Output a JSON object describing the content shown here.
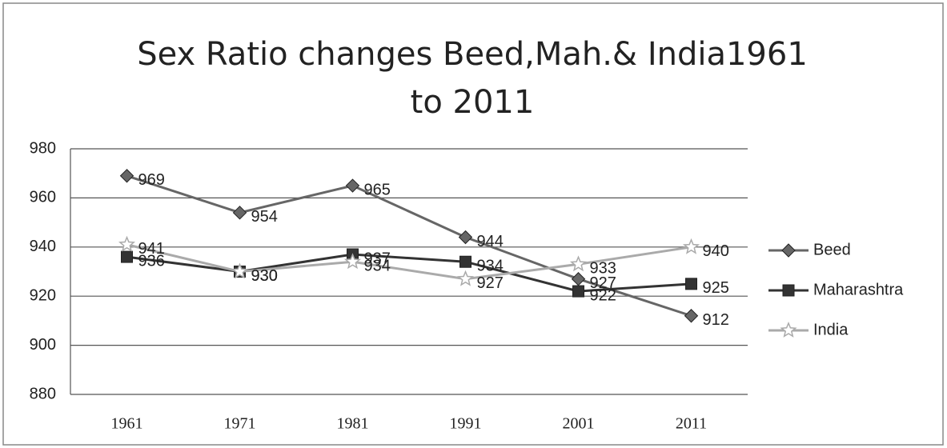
{
  "chart_data": {
    "type": "line",
    "title": "Sex Ratio changes Beed,Mah.& India1961 to 2011",
    "categories": [
      "1961",
      "1971",
      "1981",
      "1991",
      "2001",
      "2011"
    ],
    "series": [
      {
        "name": "Beed",
        "color": "#666666",
        "marker": "diamond",
        "values": [
          969,
          954,
          965,
          944,
          927,
          912
        ]
      },
      {
        "name": "Maharashtra",
        "color": "#333333",
        "marker": "square",
        "values": [
          936,
          930,
          937,
          934,
          922,
          925
        ]
      },
      {
        "name": "India",
        "color": "#aaaaaa",
        "marker": "star",
        "values": [
          941,
          930,
          934,
          927,
          933,
          940
        ]
      }
    ],
    "ylim": [
      880,
      980
    ],
    "yticks": [
      880,
      900,
      920,
      940,
      960,
      980
    ],
    "grid": true,
    "legend": "right"
  }
}
